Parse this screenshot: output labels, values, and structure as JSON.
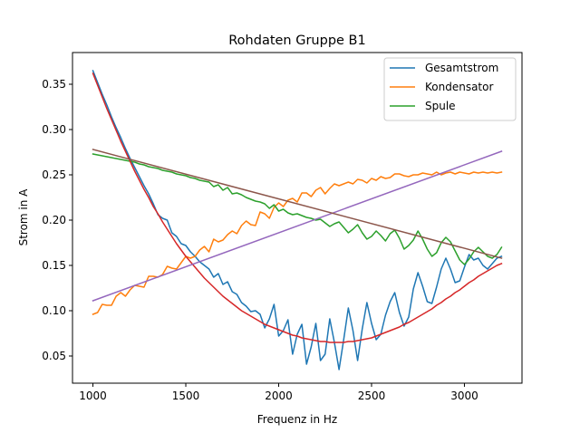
{
  "chart_data": {
    "type": "line",
    "title": "Rohdaten Gruppe B1",
    "xlabel": "Frequenz in Hz",
    "ylabel": "Strom in A",
    "xlim": [
      890,
      3310
    ],
    "ylim": [
      0.02,
      0.385
    ],
    "xticks": [
      1000,
      1500,
      2000,
      2500,
      3000
    ],
    "yticks": [
      0.05,
      0.1,
      0.15,
      0.2,
      0.25,
      0.3,
      0.35
    ],
    "grid": false,
    "legend_position": "top-right",
    "x": [
      1000,
      1025,
      1050,
      1075,
      1100,
      1125,
      1150,
      1175,
      1200,
      1225,
      1250,
      1275,
      1300,
      1325,
      1350,
      1375,
      1400,
      1425,
      1450,
      1475,
      1500,
      1525,
      1550,
      1575,
      1600,
      1625,
      1650,
      1675,
      1700,
      1725,
      1750,
      1775,
      1800,
      1825,
      1850,
      1875,
      1900,
      1925,
      1950,
      1975,
      2000,
      2025,
      2050,
      2075,
      2100,
      2125,
      2150,
      2175,
      2200,
      2225,
      2250,
      2275,
      2300,
      2325,
      2350,
      2375,
      2400,
      2425,
      2450,
      2475,
      2500,
      2525,
      2550,
      2575,
      2600,
      2625,
      2650,
      2675,
      2700,
      2725,
      2750,
      2775,
      2800,
      2825,
      2850,
      2875,
      2900,
      2925,
      2950,
      2975,
      3000,
      3025,
      3050,
      3075,
      3100,
      3125,
      3150,
      3175,
      3200
    ],
    "series": [
      {
        "name": "Gesamtstrom",
        "color": "#1f77b4",
        "values": [
          0.365,
          0.352,
          0.339,
          0.327,
          0.314,
          0.302,
          0.291,
          0.279,
          0.268,
          0.258,
          0.248,
          0.238,
          0.229,
          0.218,
          0.206,
          0.202,
          0.2,
          0.186,
          0.182,
          0.174,
          0.172,
          0.165,
          0.16,
          0.154,
          0.15,
          0.146,
          0.137,
          0.141,
          0.129,
          0.132,
          0.121,
          0.118,
          0.109,
          0.105,
          0.099,
          0.1,
          0.096,
          0.081,
          0.091,
          0.107,
          0.072,
          0.078,
          0.09,
          0.052,
          0.074,
          0.085,
          0.041,
          0.06,
          0.086,
          0.045,
          0.052,
          0.091,
          0.065,
          0.035,
          0.068,
          0.103,
          0.078,
          0.045,
          0.08,
          0.109,
          0.086,
          0.068,
          0.074,
          0.095,
          0.11,
          0.12,
          0.098,
          0.083,
          0.093,
          0.124,
          0.142,
          0.127,
          0.11,
          0.108,
          0.126,
          0.146,
          0.158,
          0.146,
          0.131,
          0.133,
          0.148,
          0.162,
          0.156,
          0.158,
          0.15,
          0.146,
          0.152,
          0.158,
          0.16
        ]
      },
      {
        "name": "Kondensator",
        "color": "#ff7f0e",
        "values": [
          0.096,
          0.098,
          0.107,
          0.106,
          0.106,
          0.116,
          0.12,
          0.116,
          0.123,
          0.128,
          0.127,
          0.126,
          0.138,
          0.138,
          0.137,
          0.14,
          0.149,
          0.147,
          0.146,
          0.153,
          0.16,
          0.158,
          0.16,
          0.167,
          0.171,
          0.165,
          0.179,
          0.176,
          0.178,
          0.184,
          0.188,
          0.185,
          0.194,
          0.199,
          0.195,
          0.194,
          0.209,
          0.207,
          0.202,
          0.214,
          0.219,
          0.215,
          0.222,
          0.224,
          0.22,
          0.23,
          0.23,
          0.226,
          0.233,
          0.236,
          0.229,
          0.235,
          0.24,
          0.238,
          0.24,
          0.242,
          0.24,
          0.245,
          0.244,
          0.241,
          0.246,
          0.244,
          0.248,
          0.246,
          0.247,
          0.251,
          0.251,
          0.249,
          0.248,
          0.25,
          0.25,
          0.252,
          0.251,
          0.25,
          0.253,
          0.25,
          0.252,
          0.253,
          0.251,
          0.253,
          0.252,
          0.251,
          0.253,
          0.252,
          0.253,
          0.252,
          0.253,
          0.252,
          0.253
        ]
      },
      {
        "name": "Spule",
        "color": "#2ca02c",
        "values": [
          0.273,
          0.272,
          0.271,
          0.27,
          0.269,
          0.268,
          0.267,
          0.266,
          0.265,
          0.264,
          0.262,
          0.261,
          0.259,
          0.258,
          0.257,
          0.255,
          0.254,
          0.253,
          0.251,
          0.25,
          0.249,
          0.247,
          0.246,
          0.244,
          0.243,
          0.242,
          0.237,
          0.239,
          0.233,
          0.236,
          0.229,
          0.23,
          0.228,
          0.225,
          0.223,
          0.221,
          0.22,
          0.218,
          0.213,
          0.217,
          0.21,
          0.212,
          0.208,
          0.206,
          0.207,
          0.205,
          0.203,
          0.202,
          0.2,
          0.201,
          0.197,
          0.193,
          0.196,
          0.198,
          0.192,
          0.186,
          0.19,
          0.195,
          0.186,
          0.179,
          0.182,
          0.188,
          0.183,
          0.177,
          0.185,
          0.189,
          0.18,
          0.168,
          0.172,
          0.178,
          0.188,
          0.179,
          0.168,
          0.16,
          0.164,
          0.175,
          0.181,
          0.176,
          0.166,
          0.156,
          0.151,
          0.157,
          0.165,
          0.17,
          0.165,
          0.16,
          0.158,
          0.162,
          0.17
        ]
      },
      {
        "color": "#d62728",
        "values": [
          0.362,
          0.349,
          0.336,
          0.323,
          0.311,
          0.299,
          0.287,
          0.276,
          0.265,
          0.254,
          0.244,
          0.234,
          0.225,
          0.215,
          0.207,
          0.198,
          0.19,
          0.182,
          0.174,
          0.167,
          0.16,
          0.154,
          0.148,
          0.142,
          0.136,
          0.131,
          0.126,
          0.121,
          0.116,
          0.112,
          0.108,
          0.104,
          0.1,
          0.097,
          0.094,
          0.091,
          0.088,
          0.085,
          0.083,
          0.081,
          0.079,
          0.077,
          0.075,
          0.073,
          0.072,
          0.07,
          0.069,
          0.068,
          0.067,
          0.066,
          0.066,
          0.065,
          0.065,
          0.065,
          0.065,
          0.066,
          0.066,
          0.067,
          0.068,
          0.069,
          0.07,
          0.072,
          0.074,
          0.076,
          0.078,
          0.08,
          0.082,
          0.085,
          0.087,
          0.09,
          0.093,
          0.096,
          0.099,
          0.102,
          0.106,
          0.109,
          0.113,
          0.116,
          0.12,
          0.123,
          0.127,
          0.131,
          0.134,
          0.138,
          0.141,
          0.144,
          0.147,
          0.15,
          0.152
        ]
      },
      {
        "color": "#9467bd",
        "fit": "linear",
        "values_at_ends": [
          0.111,
          0.276
        ]
      },
      {
        "color": "#8c564b",
        "fit": "linear",
        "values_at_ends": [
          0.278,
          0.158
        ]
      }
    ]
  }
}
